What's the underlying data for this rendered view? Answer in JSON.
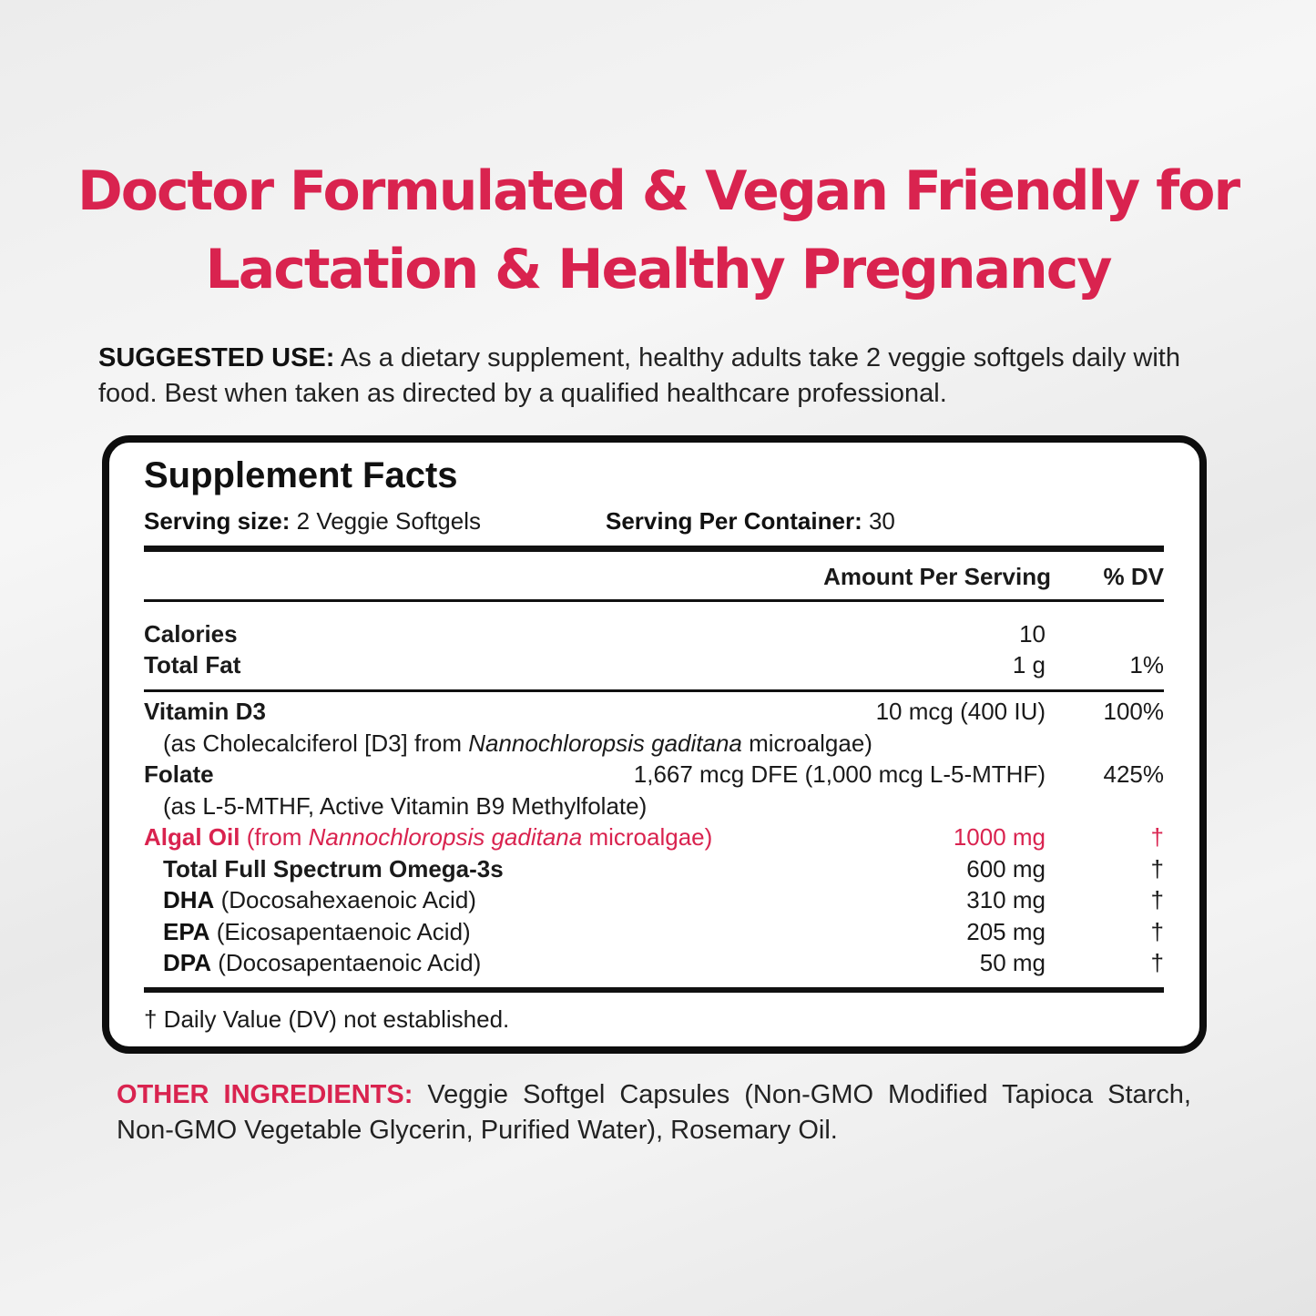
{
  "headline": {
    "line1": "Doctor Formulated & Vegan Friendly for",
    "line2": "Lactation & Healthy Pregnancy"
  },
  "suggested_use": {
    "label": "SUGGESTED USE:",
    "text": " As a dietary supplement, healthy adults take 2 veggie softgels daily with food. Best when taken as directed by a qualified healthcare professional."
  },
  "facts": {
    "title": "Supplement Facts",
    "serving_size_label": "Serving size:",
    "serving_size": " 2 Veggie Softgels",
    "per_container_label": "Serving Per Container:",
    "per_container": " 30",
    "col_amount": "Amount Per Serving",
    "col_dv": "% DV",
    "calories": {
      "name": "Calories",
      "amount": "10",
      "dv": ""
    },
    "total_fat": {
      "name": "Total Fat",
      "amount": "1 g",
      "dv": "1%"
    },
    "vitamin_d3": {
      "name": "Vitamin D3",
      "amount": "10 mcg (400 IU)",
      "dv": "100%",
      "sub_a": "(as Cholecalciferol [D3] from ",
      "sub_i": "Nannochloropsis gaditana",
      "sub_b": " microalgae)"
    },
    "folate": {
      "name": "Folate",
      "amount": "1,667 mcg DFE (1,000 mcg L-5-MTHF)",
      "dv": "425%",
      "sub": "(as L-5-MTHF, Active Vitamin B9 Methylfolate)"
    },
    "algal_oil": {
      "name": "Algal Oil",
      "desc_a": " (from ",
      "desc_i": "Nannochloropsis gaditana",
      "desc_b": " microalgae)",
      "amount": "1000 mg",
      "dv": "†"
    },
    "omega": {
      "name": "Total Full Spectrum Omega-3s",
      "amount": "600 mg",
      "dv": "†"
    },
    "dha": {
      "name": "DHA",
      "desc": " (Docosahexaenoic Acid)",
      "amount": "310 mg",
      "dv": "†"
    },
    "epa": {
      "name": "EPA",
      "desc": " (Eicosapentaenoic Acid)",
      "amount": "205 mg",
      "dv": "†"
    },
    "dpa": {
      "name": "DPA",
      "desc": " (Docosapentaenoic Acid)",
      "amount": "50 mg",
      "dv": "†"
    },
    "footnote": "† Daily Value (DV) not established."
  },
  "other_ingredients": {
    "label": "OTHER INGREDIENTS:",
    "text": " Veggie Softgel Capsules (Non-GMO Modified Tapioca Starch, Non-GMO Vegetable Glycerin, Purified Water), Rosemary Oil."
  },
  "colors": {
    "accent": "#d9234f"
  }
}
